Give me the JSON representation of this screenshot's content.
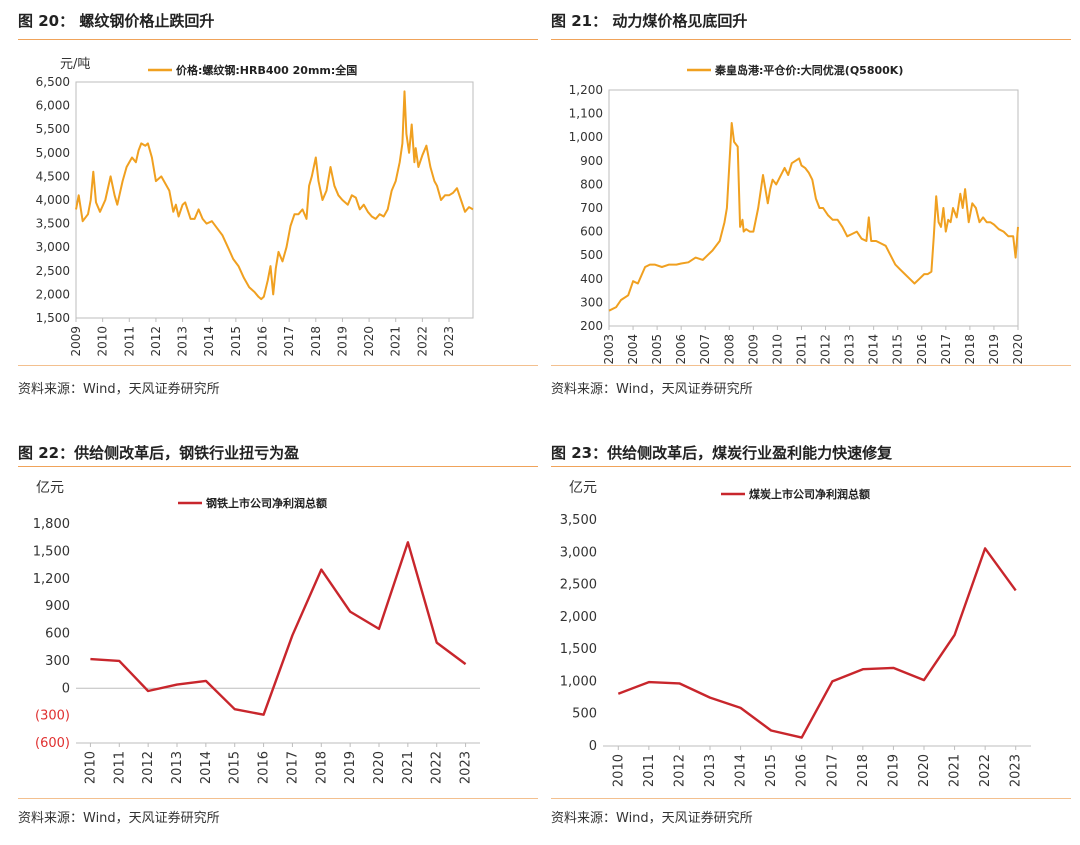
{
  "figures": [
    {
      "title": "图 20：  螺纹钢价格止跌回升",
      "source": "资料来源：Wind，天风证券研究所",
      "unit": "元/吨"
    },
    {
      "title": "图 21：  动力煤价格见底回升",
      "source": "资料来源：Wind，天风证券研究所",
      "unit": ""
    },
    {
      "title": "图 22：供给侧改革后，钢铁行业扭亏为盈",
      "source": "资料来源：Wind，天风证券研究所",
      "unit": "亿元"
    },
    {
      "title": "图 23：供给侧改革后，煤炭行业盈利能力快速修复",
      "source": "资料来源：Wind，天风证券研究所",
      "unit": "亿元"
    }
  ],
  "chart_data": [
    {
      "type": "line",
      "ylabel": "元/吨",
      "ylim": [
        1500,
        6500
      ],
      "xlim": [
        2009,
        2023.9
      ],
      "yticks": [
        "1,500",
        "2,000",
        "2,500",
        "3,000",
        "3,500",
        "4,000",
        "4,500",
        "5,000",
        "5,500",
        "6,000",
        "6,500"
      ],
      "xticks": [
        "2009",
        "2010",
        "2011",
        "2012",
        "2013",
        "2014",
        "2015",
        "2016",
        "2017",
        "2018",
        "2019",
        "2020",
        "2021",
        "2022",
        "2023"
      ],
      "color": "#f0a020",
      "legend_position": "top-center",
      "series": [
        {
          "name": "价格:螺纹钢:HRB400 20mm:全国",
          "x": [
            2009.0,
            2009.1,
            2009.25,
            2009.45,
            2009.55,
            2009.65,
            2009.75,
            2009.9,
            2010.1,
            2010.3,
            2010.45,
            2010.55,
            2010.75,
            2010.9,
            2011.1,
            2011.25,
            2011.35,
            2011.45,
            2011.6,
            2011.7,
            2011.85,
            2012.0,
            2012.2,
            2012.35,
            2012.5,
            2012.65,
            2012.75,
            2012.85,
            2013.0,
            2013.1,
            2013.3,
            2013.45,
            2013.6,
            2013.75,
            2013.9,
            2014.1,
            2014.3,
            2014.5,
            2014.7,
            2014.9,
            2015.1,
            2015.3,
            2015.5,
            2015.7,
            2015.85,
            2015.95,
            2016.05,
            2016.2,
            2016.3,
            2016.4,
            2016.5,
            2016.6,
            2016.75,
            2016.9,
            2017.05,
            2017.2,
            2017.35,
            2017.5,
            2017.65,
            2017.75,
            2017.85,
            2018.0,
            2018.1,
            2018.25,
            2018.4,
            2018.55,
            2018.7,
            2018.85,
            2019.0,
            2019.2,
            2019.35,
            2019.5,
            2019.65,
            2019.8,
            2019.95,
            2020.1,
            2020.25,
            2020.4,
            2020.55,
            2020.7,
            2020.85,
            2021.0,
            2021.15,
            2021.25,
            2021.33,
            2021.4,
            2021.5,
            2021.6,
            2021.7,
            2021.75,
            2021.85,
            2022.0,
            2022.15,
            2022.3,
            2022.45,
            2022.55,
            2022.7,
            2022.85,
            2023.0,
            2023.15,
            2023.3,
            2023.45,
            2023.6,
            2023.75,
            2023.9
          ],
          "y": [
            3800,
            4100,
            3550,
            3700,
            4000,
            4600,
            3950,
            3750,
            4000,
            4500,
            4100,
            3900,
            4400,
            4700,
            4900,
            4800,
            5050,
            5200,
            5150,
            5200,
            4900,
            4400,
            4500,
            4350,
            4200,
            3750,
            3900,
            3650,
            3900,
            3950,
            3600,
            3600,
            3800,
            3600,
            3500,
            3550,
            3400,
            3250,
            3000,
            2750,
            2600,
            2350,
            2150,
            2050,
            1950,
            1900,
            1950,
            2300,
            2600,
            2000,
            2550,
            2900,
            2700,
            3000,
            3450,
            3700,
            3700,
            3800,
            3600,
            4300,
            4500,
            4900,
            4400,
            4000,
            4200,
            4700,
            4300,
            4100,
            4000,
            3900,
            4100,
            4050,
            3800,
            3900,
            3750,
            3650,
            3600,
            3700,
            3650,
            3800,
            4200,
            4400,
            4800,
            5200,
            6300,
            5400,
            5000,
            5600,
            4800,
            5100,
            4700,
            4950,
            5150,
            4700,
            4400,
            4300,
            4000,
            4100,
            4100,
            4150,
            4250,
            4000,
            3750,
            3850,
            3800
          ]
        }
      ]
    },
    {
      "type": "line",
      "ylabel": "",
      "ylim": [
        200,
        1200
      ],
      "xlim": [
        2003,
        2020
      ],
      "yticks": [
        "200",
        "300",
        "400",
        "500",
        "600",
        "700",
        "800",
        "900",
        "1,000",
        "1,100",
        "1,200"
      ],
      "xticks": [
        "2003",
        "2004",
        "2005",
        "2006",
        "2007",
        "2008",
        "2009",
        "2010",
        "2011",
        "2012",
        "2013",
        "2014",
        "2015",
        "2016",
        "2017",
        "2018",
        "2019",
        "2020"
      ],
      "color": "#f0a020",
      "legend_position": "top-center",
      "series": [
        {
          "name": "秦皇岛港:平仓价:大同优混(Q5800K)",
          "x": [
            2003.0,
            2003.3,
            2003.5,
            2003.8,
            2004.0,
            2004.2,
            2004.5,
            2004.7,
            2004.9,
            2005.2,
            2005.5,
            2005.8,
            2006.0,
            2006.3,
            2006.6,
            2006.9,
            2007.1,
            2007.3,
            2007.6,
            2007.8,
            2007.9,
            2008.0,
            2008.1,
            2008.2,
            2008.35,
            2008.45,
            2008.55,
            2008.6,
            2008.7,
            2008.85,
            2009.0,
            2009.2,
            2009.4,
            2009.6,
            2009.7,
            2009.8,
            2009.95,
            2010.1,
            2010.3,
            2010.45,
            2010.6,
            2010.75,
            2010.9,
            2011.0,
            2011.15,
            2011.3,
            2011.45,
            2011.6,
            2011.75,
            2011.9,
            2012.1,
            2012.3,
            2012.5,
            2012.7,
            2012.9,
            2013.1,
            2013.3,
            2013.5,
            2013.7,
            2013.8,
            2013.9,
            2014.1,
            2014.3,
            2014.5,
            2014.7,
            2014.9,
            2015.1,
            2015.3,
            2015.5,
            2015.7,
            2015.9,
            2016.1,
            2016.25,
            2016.4,
            2016.5,
            2016.6,
            2016.7,
            2016.8,
            2016.9,
            2017.0,
            2017.1,
            2017.2,
            2017.3,
            2017.45,
            2017.6,
            2017.7,
            2017.8,
            2017.95,
            2018.1,
            2018.25,
            2018.4,
            2018.55,
            2018.7,
            2018.85,
            2019.0,
            2019.2,
            2019.4,
            2019.6,
            2019.8,
            2019.9,
            2020.0
          ],
          "y": [
            265,
            280,
            310,
            330,
            390,
            380,
            450,
            460,
            460,
            450,
            460,
            460,
            465,
            470,
            490,
            480,
            500,
            520,
            560,
            640,
            700,
            880,
            1060,
            980,
            960,
            620,
            650,
            600,
            610,
            600,
            600,
            700,
            840,
            720,
            780,
            820,
            800,
            830,
            870,
            840,
            890,
            900,
            910,
            880,
            870,
            850,
            820,
            740,
            700,
            700,
            670,
            650,
            650,
            620,
            580,
            590,
            600,
            570,
            560,
            660,
            560,
            560,
            550,
            540,
            500,
            460,
            440,
            420,
            400,
            380,
            400,
            420,
            420,
            430,
            580,
            750,
            640,
            620,
            700,
            600,
            650,
            640,
            700,
            660,
            760,
            700,
            780,
            640,
            720,
            700,
            640,
            660,
            640,
            640,
            630,
            610,
            600,
            580,
            580,
            490,
            620
          ]
        }
      ]
    },
    {
      "type": "line",
      "ylabel": "亿元",
      "ylim": [
        -600,
        1800
      ],
      "yticks": [
        "(600)",
        "(300)",
        "0",
        "300",
        "600",
        "900",
        "1,200",
        "1,500",
        "1,800"
      ],
      "ytick_values": [
        -600,
        -300,
        0,
        300,
        600,
        900,
        1200,
        1500,
        1800
      ],
      "categories": [
        "2010",
        "2011",
        "2012",
        "2013",
        "2014",
        "2015",
        "2016",
        "2017",
        "2018",
        "2019",
        "2020",
        "2021",
        "2022",
        "2023"
      ],
      "color": "#c8262c",
      "negative_tick_color": "#e03030",
      "legend_position": "top-center",
      "series": [
        {
          "name": "钢铁上市公司净利润总额",
          "values": [
            320,
            300,
            -30,
            40,
            80,
            -230,
            -290,
            580,
            1300,
            840,
            650,
            1600,
            500,
            265
          ]
        }
      ]
    },
    {
      "type": "line",
      "ylabel": "亿元",
      "ylim": [
        0,
        3500
      ],
      "yticks": [
        "0",
        "500",
        "1,000",
        "1,500",
        "2,000",
        "2,500",
        "3,000",
        "3,500"
      ],
      "ytick_values": [
        0,
        500,
        1000,
        1500,
        2000,
        2500,
        3000,
        3500
      ],
      "categories": [
        "2010",
        "2011",
        "2012",
        "2013",
        "2014",
        "2015",
        "2016",
        "2017",
        "2018",
        "2019",
        "2020",
        "2021",
        "2022",
        "2023"
      ],
      "color": "#c8262c",
      "legend_position": "top-center",
      "series": [
        {
          "name": "煤炭上市公司净利润总额",
          "values": [
            810,
            990,
            970,
            750,
            590,
            240,
            130,
            1000,
            1190,
            1210,
            1020,
            1720,
            3060,
            2410
          ]
        }
      ]
    }
  ]
}
